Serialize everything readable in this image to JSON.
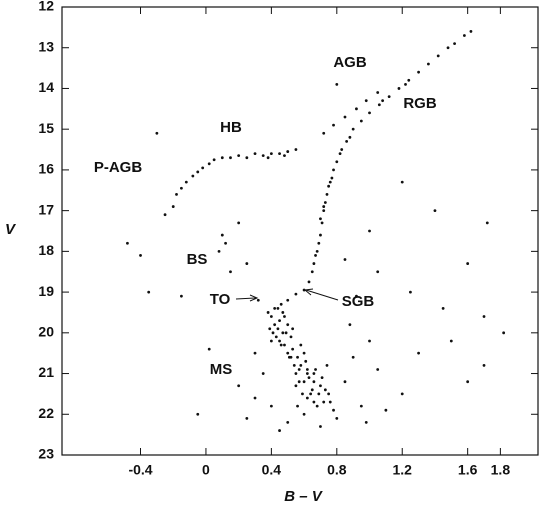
{
  "chart_data": {
    "type": "scatter",
    "xlabel": "B – V",
    "ylabel": "V",
    "xlim": [
      -0.88,
      2.03
    ],
    "ylim": [
      23,
      12
    ],
    "xticks": [
      -0.4,
      0.0,
      0.4,
      0.8,
      1.2,
      1.6,
      1.8
    ],
    "yticks": [
      12,
      13,
      14,
      15,
      16,
      17,
      18,
      19,
      20,
      21,
      22,
      23
    ],
    "color": "#111111",
    "annotations": [
      "AGB",
      "RGB",
      "HB",
      "P-AGB",
      "BS",
      "TO",
      "SGB",
      "MS"
    ],
    "x": [
      0.55,
      0.6,
      0.65,
      0.58,
      0.62,
      0.7,
      0.52,
      0.68,
      0.75,
      0.6,
      0.48,
      0.5,
      0.57,
      0.63,
      0.66,
      0.72,
      0.78,
      0.55,
      0.45,
      0.59,
      0.4,
      0.42,
      0.41,
      0.44,
      0.46,
      0.39,
      0.43,
      0.47,
      0.5,
      0.45,
      0.38,
      0.4,
      0.52,
      0.48,
      0.53,
      0.56,
      0.61,
      0.67,
      0.71,
      0.74,
      0.35,
      0.3,
      0.85,
      0.9,
      0.95,
      0.8,
      0.5,
      0.4,
      1.05,
      0.88,
      0.92,
      1.0,
      1.2,
      1.1,
      0.25,
      0.2,
      1.3,
      0.98,
      0.7,
      0.45,
      0.5,
      0.55,
      0.6,
      0.63,
      0.65,
      0.66,
      0.68,
      0.69,
      0.7,
      0.71,
      0.72,
      0.73,
      0.74,
      0.75,
      0.77,
      0.78,
      0.8,
      0.83,
      0.86,
      0.9,
      0.95,
      1.0,
      1.06,
      1.12,
      1.18,
      1.24,
      1.3,
      1.36,
      1.42,
      1.48,
      1.52,
      1.58,
      1.62,
      0.67,
      0.7,
      0.72,
      0.76,
      0.82,
      0.88,
      1.22,
      0.55,
      0.5,
      0.45,
      0.4,
      0.35,
      0.3,
      0.25,
      0.2,
      0.15,
      0.1,
      0.05,
      0.02,
      -0.02,
      -0.05,
      -0.08,
      -0.12,
      -0.15,
      -0.18,
      0.48,
      0.38,
      0.72,
      0.78,
      0.85,
      0.92,
      0.98,
      1.05,
      0.8,
      1.08,
      -0.3,
      -0.44,
      0.1,
      0.12,
      0.08,
      0.2,
      0.25,
      0.15,
      -0.25,
      -0.2,
      -0.48,
      -0.4,
      1.2,
      1.4,
      1.72,
      1.6,
      1.05,
      1.25,
      1.45,
      1.7,
      1.82,
      1.5,
      -0.35,
      -0.15,
      -0.05,
      0.02,
      1.6,
      1.7,
      0.85,
      1.0,
      0.3,
      0.32,
      0.42,
      0.44,
      0.46,
      0.49,
      0.51,
      0.54,
      0.57,
      0.62,
      0.64,
      0.69,
      0.58,
      0.6,
      0.53,
      0.47,
      0.62,
      0.66,
      0.73,
      0.76,
      0.66,
      0.56
    ],
    "values": [
      21.0,
      21.2,
      21.4,
      20.8,
      21.6,
      21.3,
      20.6,
      21.8,
      21.5,
      22.0,
      20.3,
      20.5,
      20.9,
      21.1,
      21.0,
      21.7,
      21.9,
      21.3,
      20.2,
      21.5,
      19.6,
      19.8,
      20.0,
      19.4,
      19.3,
      19.9,
      20.1,
      20.0,
      19.8,
      19.7,
      19.5,
      20.2,
      20.1,
      19.6,
      20.4,
      20.6,
      20.7,
      20.9,
      21.1,
      20.8,
      21.0,
      21.6,
      21.2,
      20.6,
      21.8,
      22.1,
      22.2,
      21.8,
      20.9,
      19.8,
      19.1,
      20.2,
      21.5,
      21.9,
      22.1,
      21.3,
      20.5,
      22.2,
      22.3,
      22.4,
      19.2,
      19.05,
      18.95,
      18.75,
      18.5,
      18.3,
      18.0,
      17.8,
      17.6,
      17.3,
      17.0,
      16.8,
      16.6,
      16.4,
      16.2,
      16.0,
      15.8,
      15.5,
      15.3,
      15.0,
      14.8,
      14.6,
      14.4,
      14.2,
      14.0,
      13.8,
      13.6,
      13.4,
      13.2,
      13.0,
      12.9,
      12.7,
      12.6,
      18.1,
      17.2,
      16.9,
      16.3,
      15.6,
      15.2,
      13.9,
      15.5,
      15.55,
      15.6,
      15.6,
      15.65,
      15.6,
      15.7,
      15.65,
      15.7,
      15.7,
      15.75,
      15.85,
      15.95,
      16.05,
      16.15,
      16.3,
      16.45,
      16.6,
      15.65,
      15.7,
      15.1,
      14.9,
      14.7,
      14.5,
      14.3,
      14.1,
      13.9,
      14.3,
      15.1,
      16.0,
      17.6,
      17.8,
      18.0,
      17.3,
      18.3,
      18.5,
      17.1,
      16.9,
      17.8,
      18.1,
      16.3,
      17.0,
      17.3,
      18.3,
      18.5,
      19.0,
      19.4,
      19.6,
      20.0,
      20.2,
      19.0,
      19.1,
      22.0,
      20.4,
      21.2,
      20.8,
      18.2,
      17.5,
      20.5,
      19.2,
      19.4,
      19.9,
      20.3,
      20.0,
      20.6,
      20.8,
      21.2,
      21.0,
      21.5,
      21.5,
      20.3,
      20.5,
      19.9,
      19.5,
      20.9,
      21.2,
      21.4,
      21.7,
      21.7,
      21.8
    ]
  }
}
